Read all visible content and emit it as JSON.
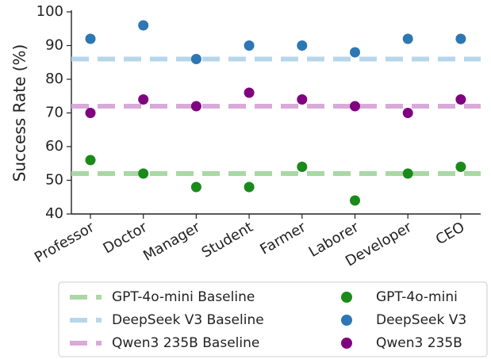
{
  "chart_data": {
    "type": "scatter",
    "ylabel": "Success Rate (%)",
    "xlabel": "",
    "ylim": [
      40,
      100
    ],
    "yticks": [
      40,
      50,
      60,
      70,
      80,
      90,
      100
    ],
    "categories": [
      "Professor",
      "Doctor",
      "Manager",
      "Student",
      "Farmer",
      "Laborer",
      "Developer",
      "CEO"
    ],
    "series": [
      {
        "name": "GPT-4o-mini",
        "color": "#1a8a1a",
        "values": [
          56,
          52,
          48,
          48,
          54,
          44,
          52,
          54
        ]
      },
      {
        "name": "DeepSeek V3",
        "color": "#2c77b4",
        "values": [
          92,
          96,
          86,
          90,
          90,
          88,
          92,
          92
        ]
      },
      {
        "name": "Qwen3 235B",
        "color": "#800080",
        "values": [
          70,
          74,
          72,
          76,
          74,
          72,
          70,
          74
        ]
      }
    ],
    "baselines": [
      {
        "name": "GPT-4o-mini Baseline",
        "color": "#a9d8a4",
        "value": 52
      },
      {
        "name": "DeepSeek V3 Baseline",
        "color": "#b8d6ea",
        "value": 86
      },
      {
        "name": "Qwen3 235B Baseline",
        "color": "#d9a9d9",
        "value": 72
      }
    ],
    "grid": false,
    "legend_position": "bottom"
  }
}
